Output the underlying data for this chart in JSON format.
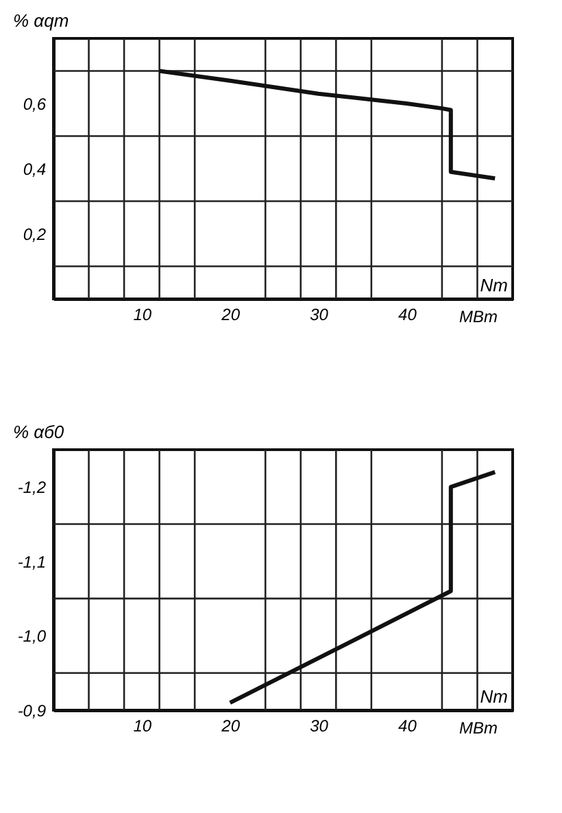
{
  "chart_data": [
    {
      "type": "line",
      "ylabel": "% αqт",
      "xlabel": "Nт",
      "annotations": [
        "МВт"
      ],
      "series": [
        {
          "color": "#111111",
          "x": [
            12,
            20,
            30,
            40,
            44,
            45,
            45,
            50
          ],
          "values": [
            0.7,
            0.67,
            0.63,
            0.6,
            0.585,
            0.58,
            0.39,
            0.37
          ]
        }
      ],
      "xlim": [
        0,
        52
      ],
      "ylim": [
        0,
        0.8
      ],
      "xticks": [
        {
          "value": 4,
          "label": null
        },
        {
          "value": 8,
          "label": null
        },
        10,
        {
          "value": 12,
          "label": null
        },
        {
          "value": 16,
          "label": null
        },
        20,
        {
          "value": 24,
          "label": null
        },
        {
          "value": 28,
          "label": null
        },
        30,
        {
          "value": 32,
          "label": null
        },
        {
          "value": 36,
          "label": null
        },
        40,
        {
          "value": 44,
          "label": null
        },
        {
          "value": 48,
          "label": null
        }
      ],
      "yticks": [
        {
          "value": 0.1,
          "label": null
        },
        {
          "value": 0.2,
          "label": "0,2"
        },
        {
          "value": 0.3,
          "label": null
        },
        {
          "value": 0.4,
          "label": "0,4"
        },
        {
          "value": 0.5,
          "label": null
        },
        {
          "value": 0.6,
          "label": "0,6"
        },
        {
          "value": 0.7,
          "label": null
        }
      ],
      "grid": true,
      "line_style": "solid",
      "marker": "none"
    },
    {
      "type": "line",
      "ylabel": "% αб0",
      "xlabel": "Nт",
      "annotations": [
        "МВт"
      ],
      "series": [
        {
          "color": "#111111",
          "x": [
            20,
            45,
            45,
            50
          ],
          "values": [
            -0.91,
            -1.06,
            -1.2,
            -1.22
          ]
        }
      ],
      "xlim": [
        0,
        52
      ],
      "ylim": [
        -0.9,
        -1.25
      ],
      "xticks": [
        {
          "value": 4,
          "label": null
        },
        {
          "value": 8,
          "label": null
        },
        10,
        {
          "value": 12,
          "label": null
        },
        {
          "value": 16,
          "label": null
        },
        20,
        {
          "value": 24,
          "label": null
        },
        {
          "value": 28,
          "label": null
        },
        30,
        {
          "value": 32,
          "label": null
        },
        {
          "value": 36,
          "label": null
        },
        40,
        {
          "value": 44,
          "label": null
        },
        {
          "value": 48,
          "label": null
        }
      ],
      "yticks": [
        {
          "value": -0.9,
          "label": "-0,9"
        },
        {
          "value": -0.95,
          "label": null
        },
        {
          "value": -1.0,
          "label": "-1,0"
        },
        {
          "value": -1.05,
          "label": null
        },
        {
          "value": -1.1,
          "label": "-1,1"
        },
        {
          "value": -1.15,
          "label": null
        },
        {
          "value": -1.2,
          "label": "-1,2"
        }
      ],
      "grid": true,
      "line_style": "solid",
      "marker": "none"
    }
  ]
}
